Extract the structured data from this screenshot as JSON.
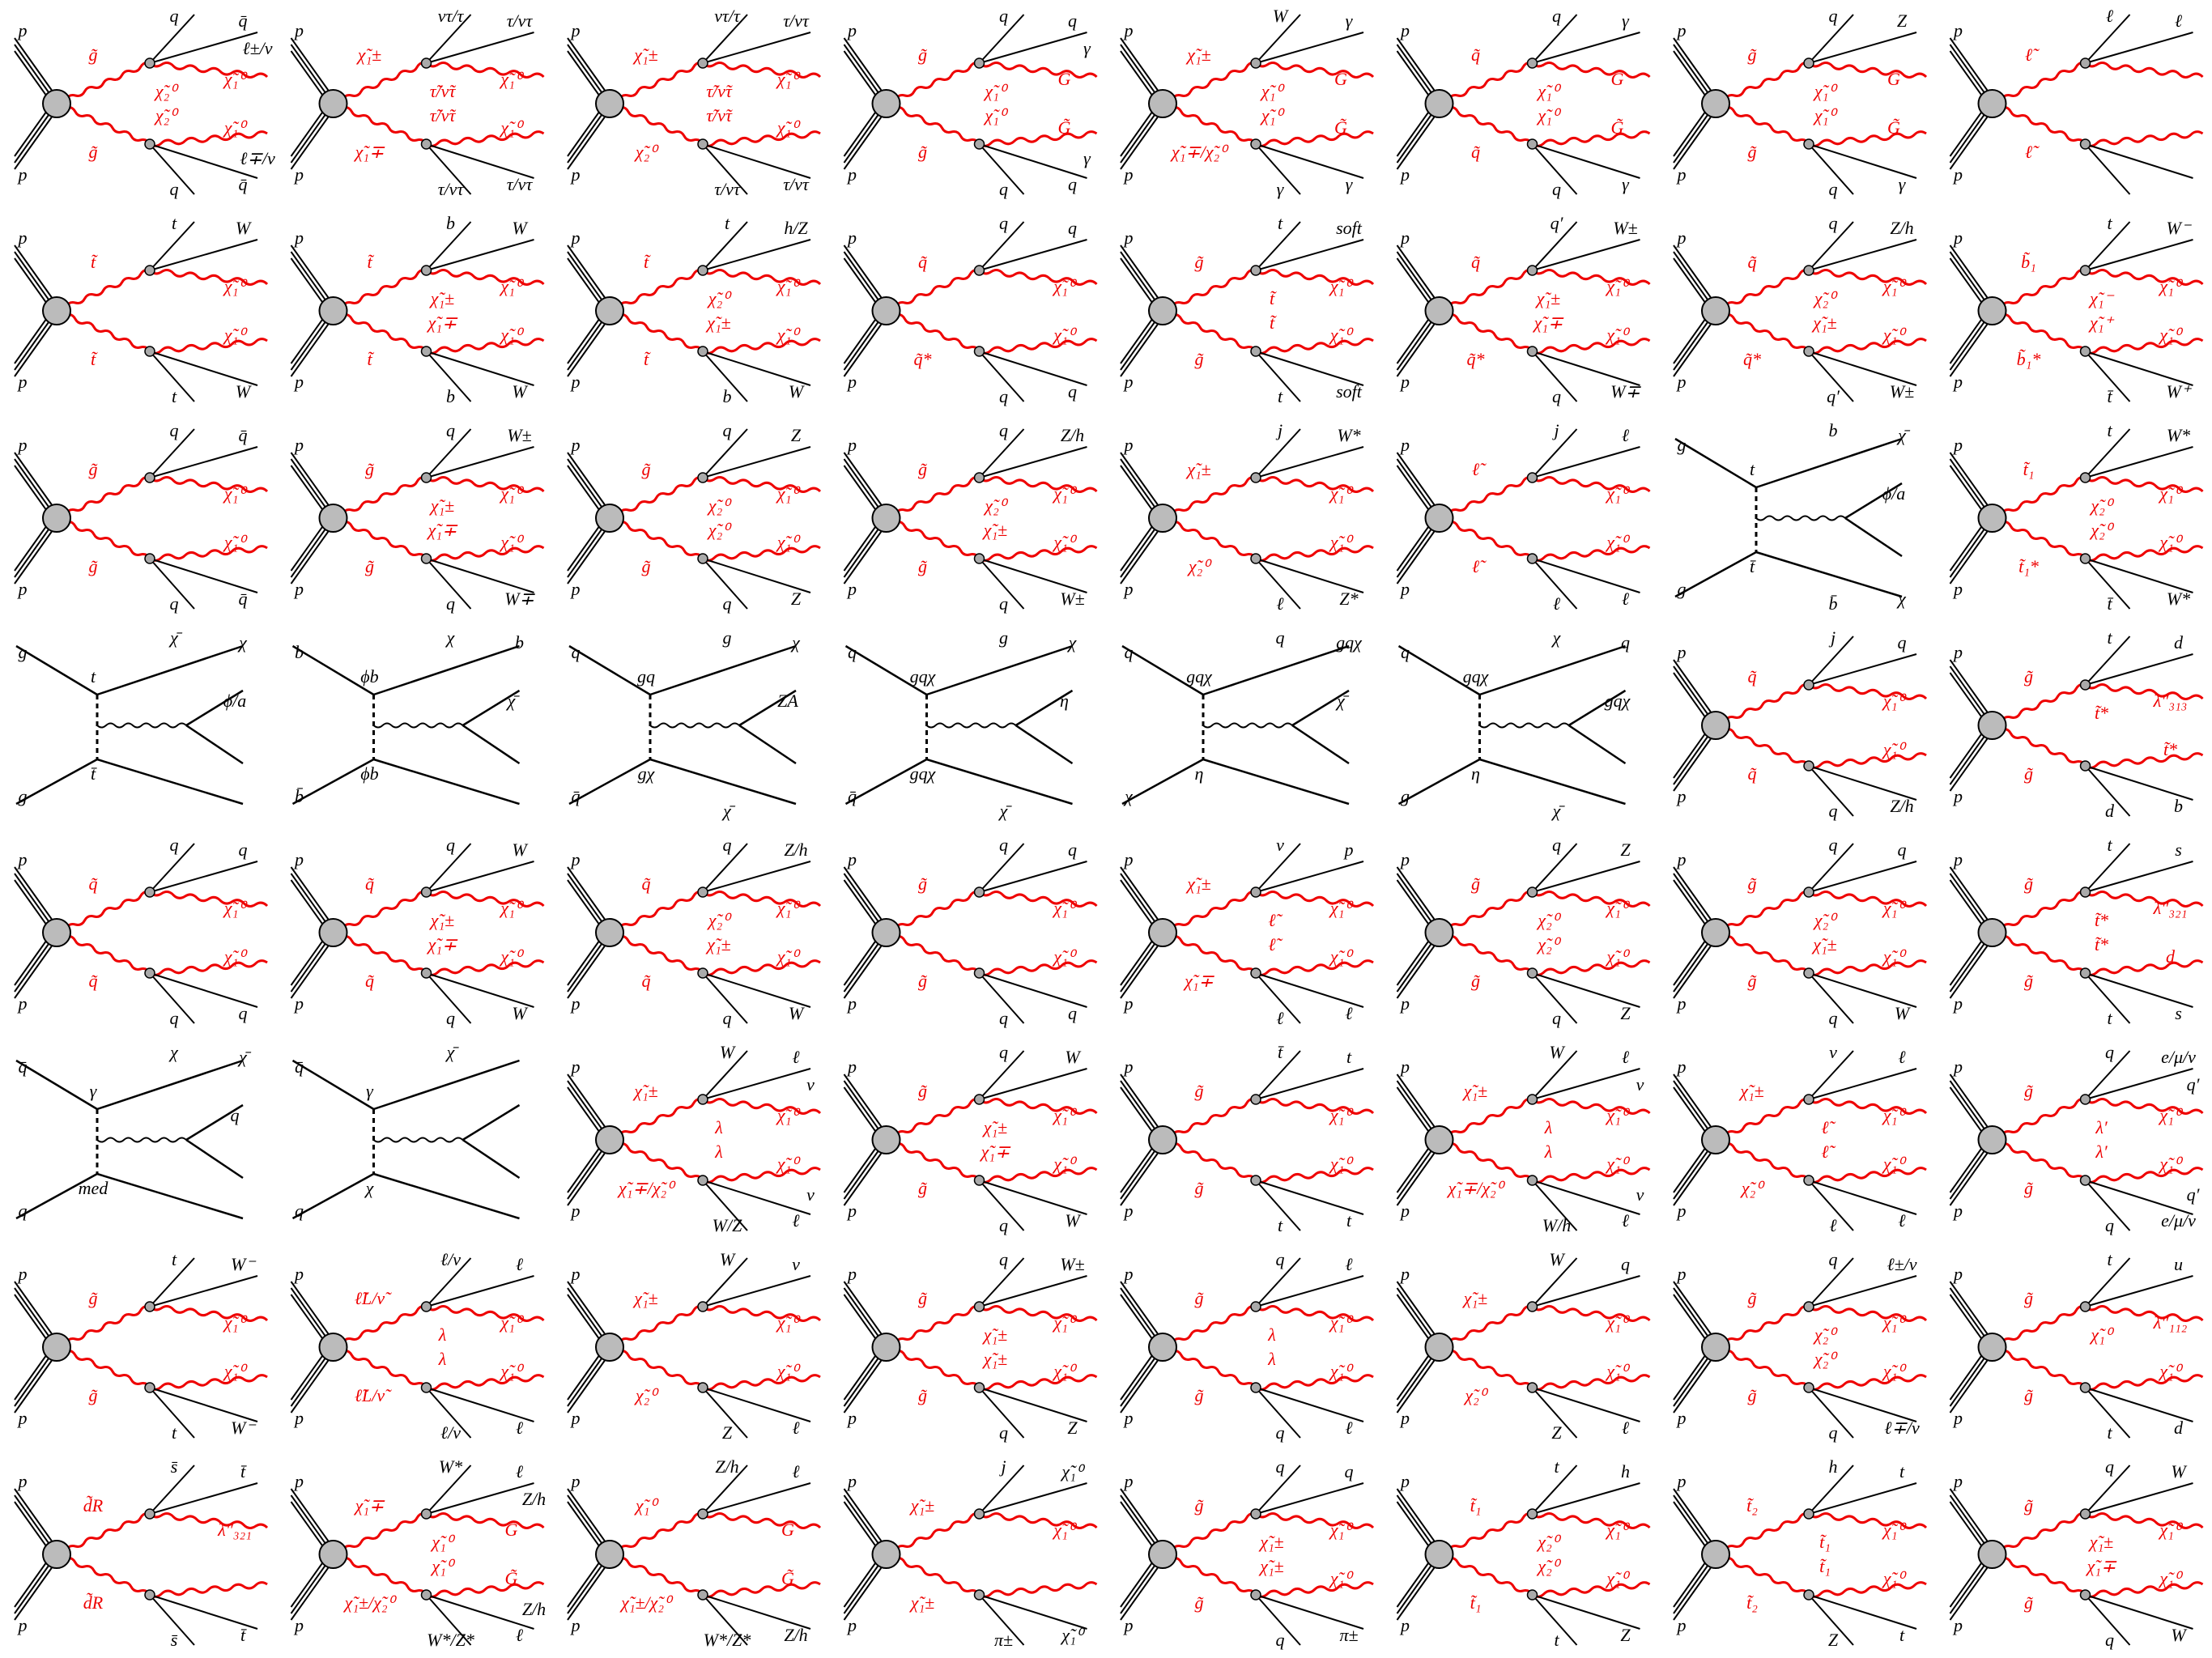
{
  "diagrams": [
    {
      "style": "susy",
      "labels": [
        "p",
        "p",
        "g̃",
        "g̃",
        "q",
        "q̄",
        "χ̃₁⁰",
        "q",
        "q̄",
        "χ̃₁⁰",
        "χ̃₂⁰",
        "χ̃₂⁰",
        "ℓ±/ν",
        "ℓ∓/ν"
      ]
    },
    {
      "style": "susy",
      "labels": [
        "p",
        "p",
        "χ̃₁±",
        "χ̃₁∓",
        "ντ/τ",
        "τ/ντ",
        "χ̃₁⁰",
        "τ/ντ",
        "τ/ντ",
        "χ̃₁⁰",
        "τ̃/ν̃τ",
        "τ̃/ν̃τ"
      ]
    },
    {
      "style": "susy",
      "labels": [
        "p",
        "p",
        "χ̃₁±",
        "χ̃₂⁰",
        "ντ/τ",
        "τ/ντ",
        "χ̃₁⁰",
        "τ/ντ",
        "τ/ντ",
        "χ̃₁⁰",
        "τ̃/ν̃τ",
        "τ̃/ν̃τ"
      ]
    },
    {
      "style": "susy",
      "labels": [
        "p",
        "p",
        "g̃",
        "g̃",
        "q",
        "q",
        "G̃",
        "q",
        "q",
        "G̃",
        "χ̃₁⁰",
        "χ̃₁⁰",
        "γ",
        "γ"
      ]
    },
    {
      "style": "susy",
      "labels": [
        "p",
        "p",
        "χ̃₁±",
        "χ̃₁∓/χ̃₂⁰",
        "W",
        "γ",
        "G̃",
        "γ",
        "γ",
        "G̃",
        "χ̃₁⁰",
        "χ̃₁⁰"
      ]
    },
    {
      "style": "susy",
      "labels": [
        "p",
        "p",
        "q̃",
        "q̃",
        "q",
        "γ",
        "G̃",
        "q",
        "γ",
        "G̃",
        "χ̃₁⁰",
        "χ̃₁⁰"
      ]
    },
    {
      "style": "susy",
      "labels": [
        "p",
        "p",
        "g̃",
        "g̃",
        "q",
        "Z",
        "G̃",
        "q",
        "γ",
        "G̃",
        "χ̃₁⁰",
        "χ̃₁⁰"
      ]
    },
    {
      "style": "susy",
      "labels": [
        "p",
        "p",
        "ℓ̃",
        "ℓ̃",
        "ℓ",
        "ℓ"
      ]
    },
    {
      "style": "susy",
      "labels": [
        "p",
        "p",
        "t̃",
        "t̃",
        "t",
        "W",
        "χ̃₁⁰",
        "t",
        "W",
        "χ̃₁⁰"
      ]
    },
    {
      "style": "susy",
      "labels": [
        "p",
        "p",
        "t̃",
        "t̃",
        "b",
        "W",
        "χ̃₁⁰",
        "b",
        "W",
        "χ̃₁⁰",
        "χ̃₁±",
        "χ̃₁∓"
      ]
    },
    {
      "style": "susy",
      "labels": [
        "p",
        "p",
        "t̃",
        "t̃",
        "t",
        "h/Z",
        "χ̃₁⁰",
        "b",
        "W",
        "χ̃₁⁰",
        "χ̃₂⁰",
        "χ̃₁±"
      ]
    },
    {
      "style": "susy",
      "labels": [
        "p",
        "p",
        "q̃",
        "q̃*",
        "q",
        "q",
        "χ̃₁⁰",
        "q",
        "q",
        "χ̃₁⁰"
      ]
    },
    {
      "style": "susy",
      "labels": [
        "p",
        "p",
        "g̃",
        "g̃",
        "t",
        "soft",
        "χ̃₁⁰",
        "t",
        "soft",
        "χ̃₁⁰",
        "t̃",
        "t̃"
      ]
    },
    {
      "style": "susy",
      "labels": [
        "p",
        "p",
        "q̃",
        "q̃*",
        "q′",
        "W±",
        "χ̃₁⁰",
        "q",
        "W∓",
        "χ̃₁⁰",
        "χ̃₁±",
        "χ̃₁∓"
      ]
    },
    {
      "style": "susy",
      "labels": [
        "p",
        "p",
        "q̃",
        "q̃*",
        "q",
        "Z/h",
        "χ̃₁⁰",
        "q′",
        "W±",
        "χ̃₁⁰",
        "χ̃₂⁰",
        "χ̃₁±"
      ]
    },
    {
      "style": "susy",
      "labels": [
        "p",
        "p",
        "b̃₁",
        "b̃₁*",
        "t",
        "W⁻",
        "χ̃₁⁰",
        "t̄",
        "W⁺",
        "χ̃₁⁰",
        "χ̃₁⁻",
        "χ̃₁⁺"
      ]
    },
    {
      "style": "susy",
      "labels": [
        "p",
        "p",
        "g̃",
        "g̃",
        "q",
        "q̄",
        "χ̃₁⁰",
        "q",
        "q̄",
        "χ̃₁⁰"
      ]
    },
    {
      "style": "susy",
      "labels": [
        "p",
        "p",
        "g̃",
        "g̃",
        "q",
        "W±",
        "χ̃₁⁰",
        "q",
        "W∓",
        "χ̃₁⁰",
        "χ̃₁±",
        "χ̃₁∓"
      ]
    },
    {
      "style": "susy",
      "labels": [
        "p",
        "p",
        "g̃",
        "g̃",
        "q",
        "Z",
        "χ̃₁⁰",
        "q",
        "Z",
        "χ̃₁⁰",
        "χ̃₂⁰",
        "χ̃₂⁰"
      ]
    },
    {
      "style": "susy",
      "labels": [
        "p",
        "p",
        "g̃",
        "g̃",
        "q",
        "Z/h",
        "χ̃₁⁰",
        "q",
        "W±",
        "χ̃₁⁰",
        "χ̃₂⁰",
        "χ̃₁±"
      ]
    },
    {
      "style": "susy",
      "labels": [
        "p",
        "p",
        "χ̃₁±",
        "χ̃₂⁰",
        "j",
        "W*",
        "χ̃₁⁰",
        "ℓ",
        "Z*",
        "χ̃₁⁰"
      ]
    },
    {
      "style": "susy",
      "labels": [
        "p",
        "p",
        "ℓ̃",
        "ℓ̃",
        "j",
        "ℓ",
        "χ̃₁⁰",
        "ℓ",
        "ℓ",
        "χ̃₁⁰"
      ]
    },
    {
      "style": "dm",
      "labels": [
        "g",
        "g",
        "t",
        "t̄",
        "b",
        "χ̄",
        "ϕ/a",
        "b̄",
        "χ"
      ]
    },
    {
      "style": "susy",
      "labels": [
        "p",
        "p",
        "t̃₁",
        "t̃₁*",
        "t",
        "W*",
        "χ̃₁⁰",
        "t̄",
        "W*",
        "χ̃₁⁰",
        "χ̃₂⁰",
        "χ̃₂⁰"
      ]
    },
    {
      "style": "dm",
      "labels": [
        "g",
        "g",
        "t",
        "t̄",
        "χ̄",
        "χ",
        "ϕ/a"
      ]
    },
    {
      "style": "dm",
      "labels": [
        "b",
        "b̄",
        "ϕb",
        "ϕb",
        "χ",
        "b",
        "χ̄"
      ]
    },
    {
      "style": "dm",
      "labels": [
        "q",
        "q̄",
        "gq",
        "gχ",
        "g",
        "χ",
        "ZA",
        "χ̄"
      ]
    },
    {
      "style": "dm",
      "labels": [
        "q",
        "q̄",
        "gqχ",
        "gqχ",
        "g",
        "χ",
        "η",
        "χ̄"
      ]
    },
    {
      "style": "dm",
      "labels": [
        "q",
        "χ",
        "gqχ",
        "η",
        "q",
        "gqχ",
        "χ̄"
      ]
    },
    {
      "style": "dm",
      "labels": [
        "q",
        "g",
        "gqχ",
        "η",
        "χ",
        "q",
        "gqχ",
        "χ̄"
      ]
    },
    {
      "style": "susy",
      "labels": [
        "p",
        "p",
        "q̃",
        "q̃",
        "j",
        "q",
        "χ̃₁⁰",
        "q",
        "Z/h",
        "χ̃₁⁰"
      ]
    },
    {
      "style": "susy",
      "labels": [
        "p",
        "p",
        "g̃",
        "g̃",
        "t",
        "d",
        "λ″₃₁₃",
        "d",
        "b",
        "t̃*",
        "t̃*"
      ]
    },
    {
      "style": "susy",
      "labels": [
        "p",
        "p",
        "q̃",
        "q̃",
        "q",
        "q",
        "χ̃₁⁰",
        "q",
        "q",
        "χ̃₁⁰"
      ]
    },
    {
      "style": "susy",
      "labels": [
        "p",
        "p",
        "q̃",
        "q̃",
        "q",
        "W",
        "χ̃₁⁰",
        "q",
        "W",
        "χ̃₁⁰",
        "χ̃₁±",
        "χ̃₁∓"
      ]
    },
    {
      "style": "susy",
      "labels": [
        "p",
        "p",
        "q̃",
        "q̃",
        "q",
        "Z/h",
        "χ̃₁⁰",
        "q",
        "W",
        "χ̃₁⁰",
        "χ̃₂⁰",
        "χ̃₁±"
      ]
    },
    {
      "style": "susy",
      "labels": [
        "p",
        "p",
        "g̃",
        "g̃",
        "q",
        "q",
        "χ̃₁⁰",
        "q",
        "q",
        "χ̃₁⁰"
      ]
    },
    {
      "style": "susy",
      "labels": [
        "p",
        "p",
        "χ̃₁±",
        "χ̃₁∓",
        "ν",
        "p",
        "χ̃₁⁰",
        "ℓ",
        "ℓ",
        "χ̃₁⁰",
        "ℓ̃",
        "ℓ̃"
      ]
    },
    {
      "style": "susy",
      "labels": [
        "p",
        "p",
        "g̃",
        "g̃",
        "q",
        "Z",
        "χ̃₁⁰",
        "q",
        "Z",
        "χ̃₁⁰",
        "χ̃₂⁰",
        "χ̃₂⁰"
      ]
    },
    {
      "style": "susy",
      "labels": [
        "p",
        "p",
        "g̃",
        "g̃",
        "q",
        "q",
        "χ̃₁⁰",
        "q",
        "W",
        "χ̃₁⁰",
        "χ̃₂⁰",
        "χ̃₁±"
      ]
    },
    {
      "style": "susy",
      "labels": [
        "p",
        "p",
        "g̃",
        "g̃",
        "t",
        "s",
        "λ″₃₂₁",
        "t",
        "s",
        "d",
        "t̃*",
        "t̃*"
      ]
    },
    {
      "style": "dm",
      "labels": [
        "q̄",
        "q",
        "γ",
        "med",
        "χ",
        "χ̄",
        "q"
      ]
    },
    {
      "style": "dm",
      "labels": [
        "q̄",
        "q",
        "γ",
        "χ",
        "χ̄"
      ]
    },
    {
      "style": "susy",
      "labels": [
        "p",
        "p",
        "χ̃₁±",
        "χ̃₁∓/χ̃₂⁰",
        "W",
        "ℓ",
        "χ̃₁⁰",
        "W/Z",
        "ℓ",
        "χ̃₁⁰",
        "λ",
        "λ",
        "ν",
        "ν"
      ]
    },
    {
      "style": "susy",
      "labels": [
        "p",
        "p",
        "g̃",
        "g̃",
        "q",
        "W",
        "χ̃₁⁰",
        "q",
        "W",
        "χ̃₁⁰",
        "χ̃₁±",
        "χ̃₁∓"
      ]
    },
    {
      "style": "susy",
      "labels": [
        "p",
        "p",
        "g̃",
        "g̃",
        "t̄",
        "t",
        "χ̃₁⁰",
        "t",
        "t",
        "χ̃₁⁰"
      ]
    },
    {
      "style": "susy",
      "labels": [
        "p",
        "p",
        "χ̃₁±",
        "χ̃₁∓/χ̃₂⁰",
        "W",
        "ℓ",
        "χ̃₁⁰",
        "W/h",
        "ℓ",
        "χ̃₁⁰",
        "λ",
        "λ",
        "ν",
        "ν"
      ]
    },
    {
      "style": "susy",
      "labels": [
        "p",
        "p",
        "χ̃₁±",
        "χ̃₂⁰",
        "ν",
        "ℓ",
        "χ̃₁⁰",
        "ℓ",
        "ℓ",
        "χ̃₁⁰",
        "ℓ̃",
        "ℓ̃"
      ]
    },
    {
      "style": "susy",
      "labels": [
        "p",
        "p",
        "g̃",
        "g̃",
        "q",
        "e/μ/ν",
        "χ̃₁⁰",
        "q",
        "e/μ/ν",
        "χ̃₁⁰",
        "λ′",
        "λ′",
        "q′",
        "q′"
      ]
    },
    {
      "style": "susy",
      "labels": [
        "p",
        "p",
        "g̃",
        "g̃",
        "t",
        "W⁻",
        "χ̃₁⁰",
        "t",
        "W⁻",
        "χ̃₁⁰"
      ]
    },
    {
      "style": "susy",
      "labels": [
        "p",
        "p",
        "ℓ̃L/ν̃",
        "ℓ̃L/ν̃",
        "ℓ/ν",
        "ℓ",
        "χ̃₁⁰",
        "ℓ/ν",
        "ℓ",
        "χ̃₁⁰",
        "λ",
        "λ"
      ]
    },
    {
      "style": "susy",
      "labels": [
        "p",
        "p",
        "χ̃₁±",
        "χ̃₂⁰",
        "W",
        "ν",
        "χ̃₁⁰",
        "Z",
        "ℓ",
        "χ̃₁⁰"
      ]
    },
    {
      "style": "susy",
      "labels": [
        "p",
        "p",
        "g̃",
        "g̃",
        "q",
        "W±",
        "χ̃₁⁰",
        "q",
        "Z",
        "χ̃₁⁰",
        "χ̃₁±",
        "χ̃₁±"
      ]
    },
    {
      "style": "susy",
      "labels": [
        "p",
        "p",
        "g̃",
        "g̃",
        "q",
        "ℓ",
        "χ̃₁⁰",
        "q",
        "ℓ",
        "χ̃₁⁰",
        "λ",
        "λ"
      ]
    },
    {
      "style": "susy",
      "labels": [
        "p",
        "p",
        "χ̃₁±",
        "χ̃₂⁰",
        "W",
        "q",
        "χ̃₁⁰",
        "Z",
        "ℓ",
        "χ̃₁⁰"
      ]
    },
    {
      "style": "susy",
      "labels": [
        "p",
        "p",
        "g̃",
        "g̃",
        "q",
        "ℓ±/ν",
        "χ̃₁⁰",
        "q",
        "ℓ∓/ν",
        "χ̃₁⁰",
        "χ̃₂⁰",
        "χ̃₂⁰"
      ]
    },
    {
      "style": "susy",
      "labels": [
        "p",
        "p",
        "g̃",
        "g̃",
        "t",
        "u",
        "λ″₁₁₂",
        "t",
        "d",
        "χ̃₁⁰",
        "χ̃₁⁰"
      ]
    },
    {
      "style": "susy",
      "labels": [
        "p",
        "p",
        "d̃R",
        "d̃R",
        "s̄",
        "t̄",
        "λ″₃₂₁",
        "s̄",
        "t̄"
      ]
    },
    {
      "style": "susy",
      "labels": [
        "p",
        "p",
        "χ̃₁∓",
        "χ̃₁±/χ̃₂⁰",
        "W*",
        "ℓ",
        "G̃",
        "W*/Z*",
        "ℓ",
        "G̃",
        "χ̃₁⁰",
        "χ̃₁⁰",
        "Z/h",
        "Z/h"
      ]
    },
    {
      "style": "susy",
      "labels": [
        "p",
        "p",
        "χ̃₁⁰",
        "χ̃₁±/χ̃₂⁰",
        "Z/h",
        "ℓ",
        "G̃",
        "W*/Z*",
        "Z/h",
        "G̃"
      ]
    },
    {
      "style": "susy",
      "labels": [
        "p",
        "p",
        "χ̃₁±",
        "χ̃₁±",
        "j",
        "χ̃₁⁰",
        "χ̃₁⁰",
        "π±",
        "χ̃₁⁰"
      ]
    },
    {
      "style": "susy",
      "labels": [
        "p",
        "p",
        "g̃",
        "g̃",
        "q",
        "q",
        "χ̃₁⁰",
        "q",
        "π±",
        "χ̃₁⁰",
        "χ̃₁±",
        "χ̃₁±"
      ]
    },
    {
      "style": "susy",
      "labels": [
        "p",
        "p",
        "t̃₁",
        "t̃₁",
        "t",
        "h",
        "χ̃₁⁰",
        "t",
        "Z",
        "χ̃₁⁰",
        "χ̃₂⁰",
        "χ̃₂⁰"
      ]
    },
    {
      "style": "susy",
      "labels": [
        "p",
        "p",
        "t̃₂",
        "t̃₂",
        "h",
        "t",
        "χ̃₁⁰",
        "Z",
        "t",
        "χ̃₁⁰",
        "t̃₁",
        "t̃₁"
      ]
    },
    {
      "style": "susy",
      "labels": [
        "p",
        "p",
        "g̃",
        "g̃",
        "q",
        "W",
        "χ̃₁⁰",
        "q",
        "W",
        "χ̃₁⁰",
        "χ̃₁±",
        "χ̃₁∓"
      ]
    }
  ]
}
